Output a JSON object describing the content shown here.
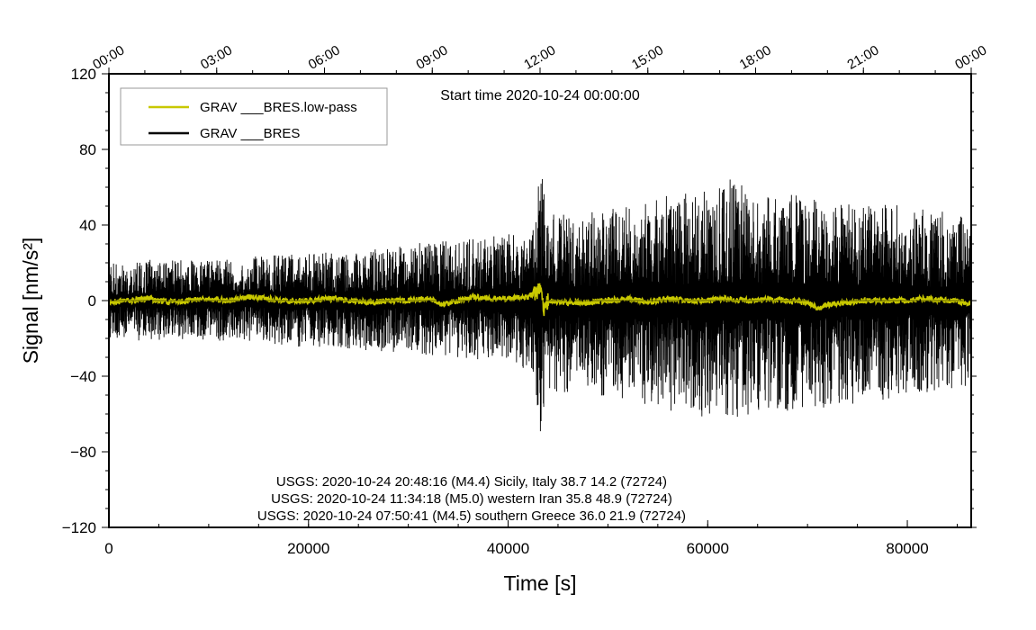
{
  "chart_data": {
    "type": "line",
    "title": "Start time 2020-10-24 00:00:00",
    "xlabel": "Time [s]",
    "ylabel": "Signal [nm/s²]",
    "xlim": [
      0,
      86400
    ],
    "ylim": [
      -120,
      120
    ],
    "x_ticks": [
      0,
      20000,
      40000,
      60000,
      80000
    ],
    "x_tick_labels": [
      "0",
      "20000",
      "40000",
      "60000",
      "80000"
    ],
    "y_ticks": [
      -120,
      -80,
      -40,
      0,
      40,
      80,
      120
    ],
    "y_tick_labels": [
      "−120",
      "−80",
      "−40",
      "0",
      "40",
      "80",
      "120"
    ],
    "top_axis": {
      "ticks_seconds": [
        0,
        10800,
        21600,
        32400,
        43200,
        54000,
        64800,
        75600,
        86400
      ],
      "tick_labels": [
        "00:00",
        "03:00",
        "06:00",
        "09:00",
        "12:00",
        "15:00",
        "18:00",
        "21:00",
        "00:00"
      ]
    },
    "legend": {
      "placement": "top-left",
      "entries": [
        {
          "label": "GRAV ___BRES.low-pass",
          "color": "#c8c800"
        },
        {
          "label": "GRAV ___BRES",
          "color": "#000000"
        }
      ]
    },
    "series": [
      {
        "name": "GRAV ___BRES",
        "color": "#000000",
        "kind": "noise-envelope",
        "x": [
          0,
          5000,
          10000,
          15000,
          20000,
          25000,
          30000,
          35000,
          40000,
          42500,
          43300,
          44000,
          47000,
          50000,
          55000,
          60000,
          62000,
          65000,
          70000,
          75000,
          80000,
          86400
        ],
        "envelope_upper": [
          20,
          22,
          21,
          24,
          25,
          26,
          30,
          32,
          35,
          40,
          72,
          48,
          46,
          48,
          55,
          58,
          65,
          58,
          55,
          52,
          50,
          45
        ],
        "envelope_lower": [
          -20,
          -22,
          -21,
          -22,
          -25,
          -26,
          -28,
          -30,
          -34,
          -38,
          -73,
          -48,
          -50,
          -52,
          -58,
          -62,
          -63,
          -60,
          -58,
          -55,
          -50,
          -45
        ]
      },
      {
        "name": "GRAV ___BRES.low-pass",
        "color": "#c8c800",
        "x": [
          0,
          2000,
          4000,
          6000,
          8000,
          10000,
          12000,
          14000,
          16000,
          18000,
          20000,
          22000,
          24000,
          26000,
          28000,
          30000,
          32000,
          33500,
          35000,
          36500,
          38000,
          40000,
          42000,
          43000,
          43300,
          43600,
          44000,
          46000,
          48000,
          50000,
          52000,
          54000,
          56000,
          58000,
          60000,
          62000,
          64000,
          66000,
          68000,
          70000,
          71000,
          72000,
          74000,
          76000,
          78000,
          80000,
          82000,
          84000,
          86400
        ],
        "values": [
          -1,
          0,
          1,
          -1,
          0,
          1,
          0,
          2,
          1,
          0,
          0,
          1,
          0,
          -1,
          0,
          0,
          1,
          -2,
          0,
          2,
          1,
          1,
          2,
          5,
          10,
          -6,
          0,
          -1,
          -1,
          0,
          1,
          -1,
          1,
          0,
          0,
          1,
          0,
          1,
          0,
          -1,
          -4,
          -2,
          -1,
          0,
          0,
          0,
          1,
          0,
          -1
        ]
      }
    ],
    "annotations": [
      "USGS: 2020-10-24 20:48:16 (M4.4) Sicily, Italy 38.7 14.2 (72724)",
      "USGS: 2020-10-24 11:34:18 (M5.0) western Iran 35.8 48.9 (72724)",
      "USGS: 2020-10-24 07:50:41 (M4.5) southern Greece 36.0 21.9 (72724)"
    ]
  }
}
